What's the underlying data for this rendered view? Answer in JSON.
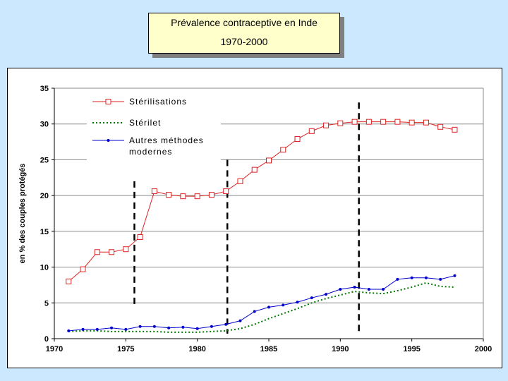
{
  "title": {
    "line1": "Prévalence contraceptive en Inde",
    "line2": "1970-2000"
  },
  "chart_data": {
    "type": "line",
    "ylabel": "en % des couples protégés",
    "xlabel": "",
    "xlim": [
      1970,
      2000
    ],
    "ylim": [
      0,
      35
    ],
    "xticks": [
      1970,
      1975,
      1980,
      1985,
      1990,
      1995,
      2000
    ],
    "yticks": [
      0,
      5,
      10,
      15,
      20,
      25,
      30,
      35
    ],
    "grid": "horizontal",
    "legend_position": "top-left",
    "x": [
      1971,
      1972,
      1973,
      1974,
      1975,
      1976,
      1977,
      1978,
      1979,
      1980,
      1981,
      1982,
      1983,
      1984,
      1985,
      1986,
      1987,
      1988,
      1989,
      1990,
      1991,
      1992,
      1993,
      1994,
      1995,
      1996,
      1997,
      1998
    ],
    "series": [
      {
        "name": "Stérilisations",
        "color": "#dd2222",
        "style": "solid",
        "marker": "square-open",
        "values": [
          8.0,
          9.7,
          12.1,
          12.1,
          12.5,
          14.2,
          20.6,
          20.1,
          19.9,
          19.9,
          20.1,
          20.6,
          22.0,
          23.6,
          24.9,
          26.4,
          27.9,
          29.0,
          29.8,
          30.1,
          30.3,
          30.3,
          30.3,
          30.3,
          30.2,
          30.2,
          29.6,
          29.2
        ]
      },
      {
        "name": "Stérilet",
        "color": "#007700",
        "style": "dotted",
        "marker": "none",
        "values": [
          1.0,
          1.1,
          1.1,
          1.0,
          1.0,
          1.0,
          1.0,
          0.9,
          0.9,
          0.9,
          1.0,
          1.1,
          1.4,
          2.0,
          2.8,
          3.5,
          4.2,
          5.0,
          5.6,
          6.1,
          6.6,
          6.4,
          6.3,
          6.7,
          7.2,
          7.8,
          7.3,
          7.2
        ]
      },
      {
        "name": "Autres méthodes modernes",
        "color": "#0000cc",
        "style": "solid",
        "marker": "dot",
        "values": [
          1.1,
          1.3,
          1.3,
          1.5,
          1.3,
          1.7,
          1.7,
          1.5,
          1.6,
          1.4,
          1.7,
          2.0,
          2.5,
          3.8,
          4.4,
          4.7,
          5.1,
          5.7,
          6.2,
          6.9,
          7.2,
          6.9,
          6.9,
          8.3,
          8.5,
          8.5,
          8.3,
          8.8
        ]
      }
    ],
    "dashed_markers": [
      {
        "x": 1975.6,
        "y_from": 4.8,
        "y_to": 22.0
      },
      {
        "x": 1982.1,
        "y_from": 0.7,
        "y_to": 25.0
      },
      {
        "x": 1991.3,
        "y_from": 0.5,
        "y_to": 33.0
      }
    ]
  }
}
